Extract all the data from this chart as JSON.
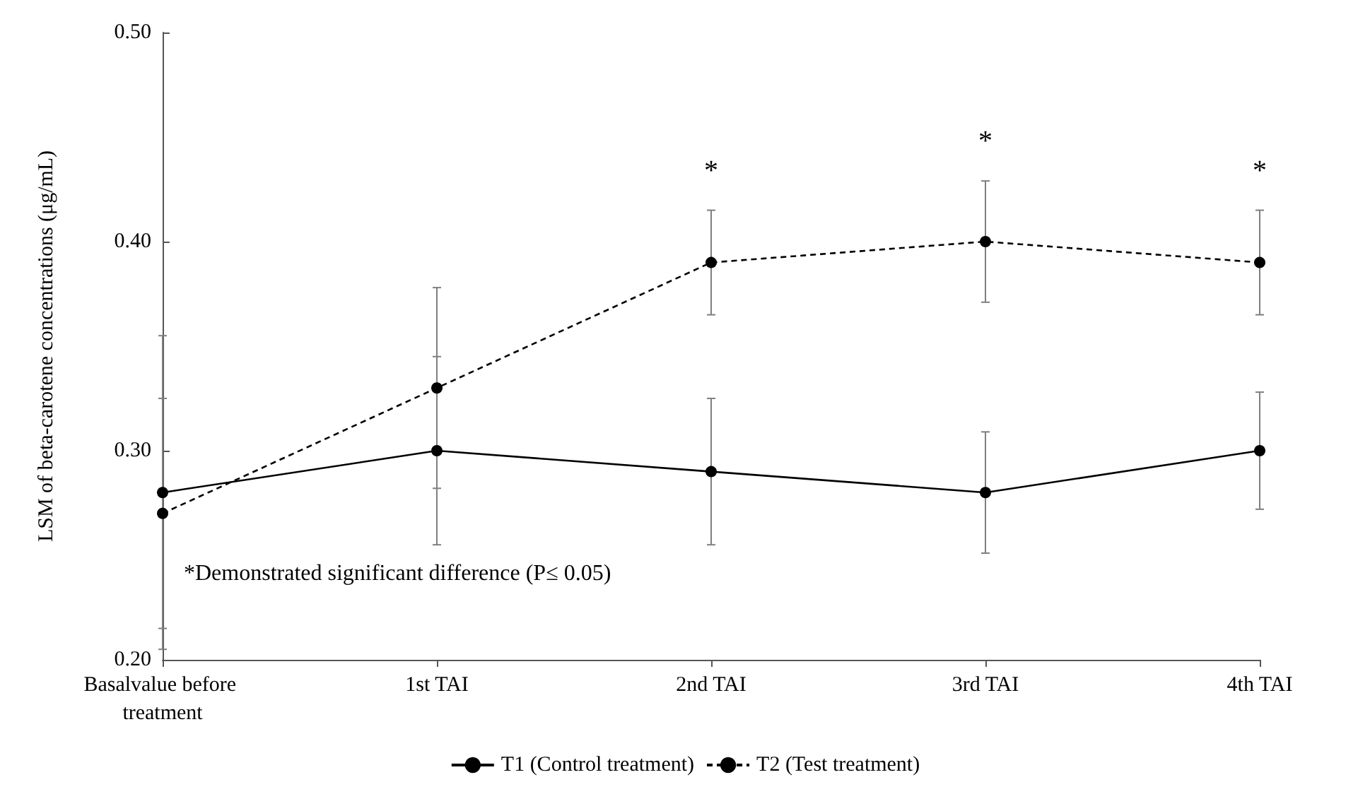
{
  "chart_data": {
    "type": "line",
    "ylabel": "LSM of beta-carotene concentrations (μg/mL)",
    "categories": [
      "Basalvalue before treatment",
      "1st TAI",
      "2nd TAI",
      "3rd TAI",
      "4th TAI"
    ],
    "series": [
      {
        "name": "T1 (Control treatment)",
        "color": "#000000",
        "line_style": "solid",
        "values": [
          0.28,
          0.3,
          0.29,
          0.28,
          0.3
        ],
        "errors": [
          0.075,
          0.045,
          0.035,
          0.029,
          0.028
        ]
      },
      {
        "name": "T2 (Test treatment)",
        "color": "#000000",
        "line_style": "dashed",
        "values": [
          0.27,
          0.33,
          0.39,
          0.4,
          0.39
        ],
        "errors": [
          0.055,
          0.048,
          0.025,
          0.029,
          0.025
        ]
      }
    ],
    "ylim": [
      0.2,
      0.5
    ],
    "yticks": [
      {
        "value": 0.2,
        "label": "0.20"
      },
      {
        "value": 0.3,
        "label": "0.30"
      },
      {
        "value": 0.4,
        "label": "0.40"
      },
      {
        "value": 0.5,
        "label": "0.50"
      }
    ],
    "marker": "circle",
    "grid": false,
    "legend": "bottom",
    "annotations": [
      "*",
      "*",
      "*",
      "*Demonstrated significant difference (P≤ 0.05)"
    ]
  }
}
